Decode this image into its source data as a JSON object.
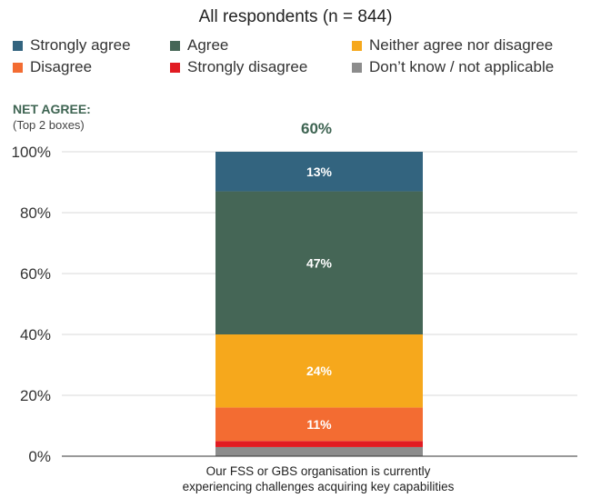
{
  "chart_data": {
    "type": "bar",
    "stacked": true,
    "title": "All respondents (n = 844)",
    "categories": [
      "Our FSS or GBS organisation is currently experiencing challenges acquiring key capabilities"
    ],
    "category_lines": [
      "Our FSS or GBS organisation is currently",
      "experiencing challenges acquiring key capabilities"
    ],
    "series": [
      {
        "name": "Don’t know / not applicable",
        "values": [
          3
        ],
        "color": "#8c8c8c",
        "label": ""
      },
      {
        "name": "Strongly disagree",
        "values": [
          2
        ],
        "color": "#e11b22",
        "label": ""
      },
      {
        "name": "Disagree",
        "values": [
          11
        ],
        "color": "#f36c32",
        "label": "11%"
      },
      {
        "name": "Neither agree nor disagree",
        "values": [
          24
        ],
        "color": "#f6a81c",
        "label": "24%"
      },
      {
        "name": "Agree",
        "values": [
          47
        ],
        "color": "#456656",
        "label": "47%"
      },
      {
        "name": "Strongly agree",
        "values": [
          13
        ],
        "color": "#33647f",
        "label": "13%"
      }
    ],
    "ylim": [
      0,
      100
    ],
    "yticks": [
      "0%",
      "20%",
      "40%",
      "60%",
      "80%",
      "100%"
    ],
    "grid": true,
    "legend_position": "top",
    "net_agree": {
      "label": "NET AGREE:",
      "sublabel": "(Top 2 boxes)",
      "value": "60%"
    }
  }
}
